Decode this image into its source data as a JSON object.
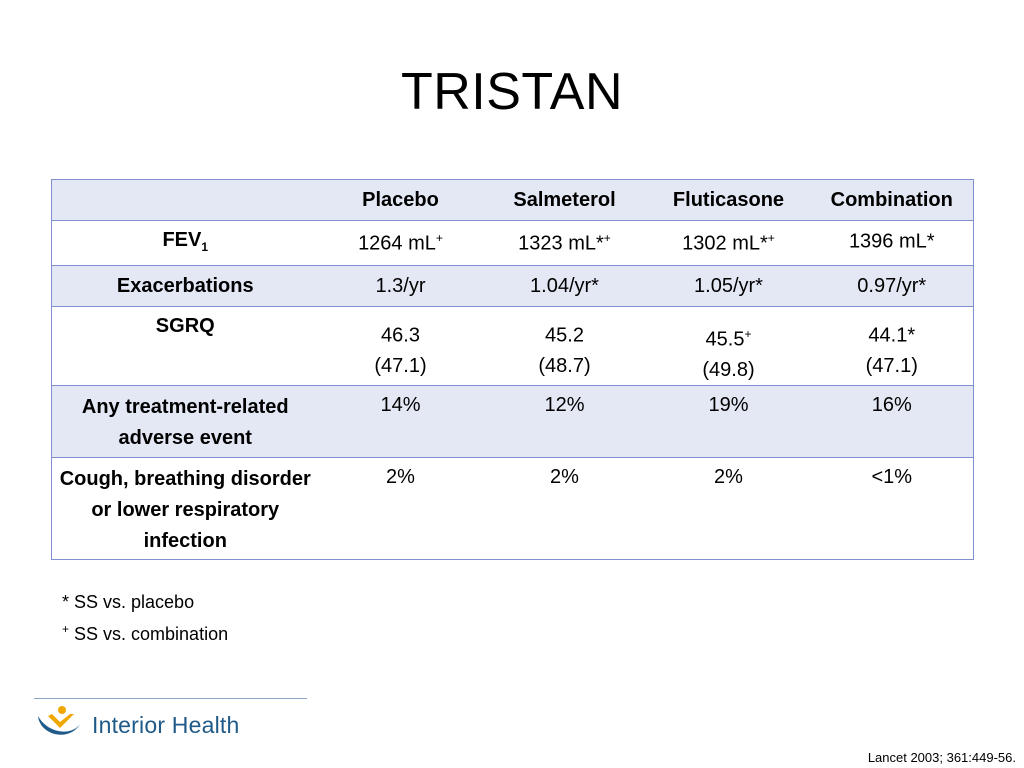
{
  "title": "TRISTAN",
  "table": {
    "headers": [
      "",
      "Placebo",
      "Salmeterol",
      "Fluticasone",
      "Combination"
    ],
    "rows": [
      {
        "label": "FEV",
        "label_sub": "1",
        "cells": [
          {
            "value": "1264 mL",
            "sup": "+"
          },
          {
            "value": "1323 mL*",
            "sup": "+"
          },
          {
            "value": "1302 mL*",
            "sup": "+"
          },
          {
            "value": "1396 mL*",
            "sup": ""
          }
        ]
      },
      {
        "label": "Exacerbations",
        "cells": [
          {
            "value": "1.3/yr"
          },
          {
            "value": "1.04/yr*"
          },
          {
            "value": "1.05/yr*"
          },
          {
            "value": "0.97/yr*"
          }
        ]
      },
      {
        "label": "SGRQ",
        "cells": [
          {
            "value": "46.3",
            "sup": "",
            "sub": "(47.1)"
          },
          {
            "value": "45.2",
            "sup": "",
            "sub": "(48.7)"
          },
          {
            "value": "45.5",
            "sup": "+",
            "sub": "(49.8)"
          },
          {
            "value": "44.1*",
            "sup": "",
            "sub": "(47.1)"
          }
        ]
      },
      {
        "label": "Any treatment-related adverse event",
        "cells": [
          {
            "value": "14%"
          },
          {
            "value": "12%"
          },
          {
            "value": "19%"
          },
          {
            "value": "16%"
          }
        ]
      },
      {
        "label": "Cough, breathing disorder or lower respiratory infection",
        "cells": [
          {
            "value": "2%"
          },
          {
            "value": "2%"
          },
          {
            "value": "2%"
          },
          {
            "value": "<1%"
          }
        ]
      }
    ]
  },
  "notes": {
    "line1": "* SS vs. placebo",
    "line2_sup": "+",
    "line2": " SS vs. combination"
  },
  "logo": {
    "name": "Interior Health",
    "icon": "interior-health-logo-icon",
    "colors": {
      "swoosh": "#1f5a88",
      "figure": "#f0a800",
      "text": "#1f5a88"
    }
  },
  "citation": "Lancet 2003; 361:449-56.",
  "colors": {
    "header_band": "#e4e8f4",
    "border": "#7f8fd0"
  }
}
